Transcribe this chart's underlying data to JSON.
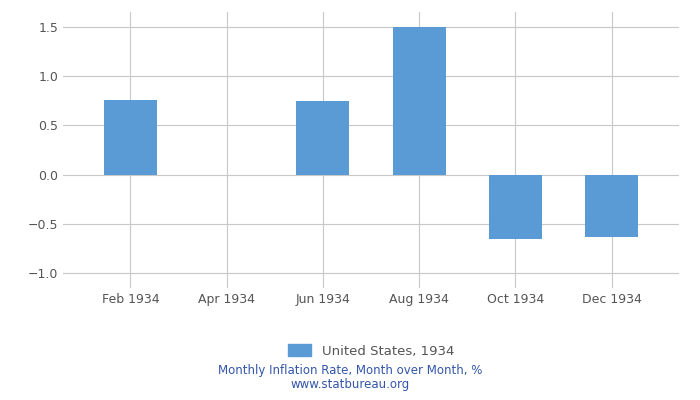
{
  "categories": [
    "Feb 1934",
    "Apr 1934",
    "Jun 1934",
    "Aug 1934",
    "Oct 1934",
    "Dec 1934"
  ],
  "values": [
    0.76,
    0.0,
    0.75,
    1.5,
    -0.65,
    -0.63
  ],
  "bar_color": "#5b9bd5",
  "ylim": [
    -1.15,
    1.65
  ],
  "yticks": [
    -1.0,
    -0.5,
    0.0,
    0.5,
    1.0,
    1.5
  ],
  "grid_color": "#c8c8c8",
  "legend_label": "United States, 1934",
  "subtitle": "Monthly Inflation Rate, Month over Month, %",
  "website": "www.statbureau.org",
  "subtitle_color": "#3355aa",
  "bg_color": "#ffffff",
  "tick_color": "#555555",
  "bar_width": 0.55
}
